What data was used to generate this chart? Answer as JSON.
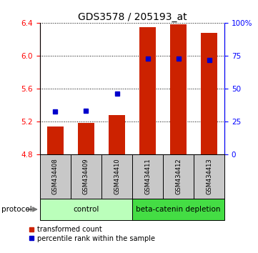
{
  "title": "GDS3578 / 205193_at",
  "samples": [
    "GSM434408",
    "GSM434409",
    "GSM434410",
    "GSM434411",
    "GSM434412",
    "GSM434413"
  ],
  "red_values": [
    5.14,
    5.18,
    5.28,
    6.35,
    6.38,
    6.28
  ],
  "blue_values": [
    5.32,
    5.33,
    5.54,
    5.96,
    5.96,
    5.95
  ],
  "ylim_left": [
    4.8,
    6.4
  ],
  "ylim_right": [
    0,
    100
  ],
  "yticks_left": [
    4.8,
    5.2,
    5.6,
    6.0,
    6.4
  ],
  "yticks_right": [
    0,
    25,
    50,
    75,
    100
  ],
  "ytick_labels_right": [
    "0",
    "25",
    "50",
    "75",
    "100%"
  ],
  "bar_baseline": 4.8,
  "control_label": "control",
  "depletion_label": "beta-catenin depletion",
  "protocol_label": "protocol",
  "legend_red": "transformed count",
  "legend_blue": "percentile rank within the sample",
  "bar_color": "#CC2200",
  "blue_color": "#0000CC",
  "control_bg": "#BBFFBB",
  "depletion_bg": "#44DD44",
  "sample_bg": "#C8C8C8",
  "title_fontsize": 10,
  "tick_fontsize": 7.5,
  "label_fontsize": 8,
  "legend_fontsize": 7
}
